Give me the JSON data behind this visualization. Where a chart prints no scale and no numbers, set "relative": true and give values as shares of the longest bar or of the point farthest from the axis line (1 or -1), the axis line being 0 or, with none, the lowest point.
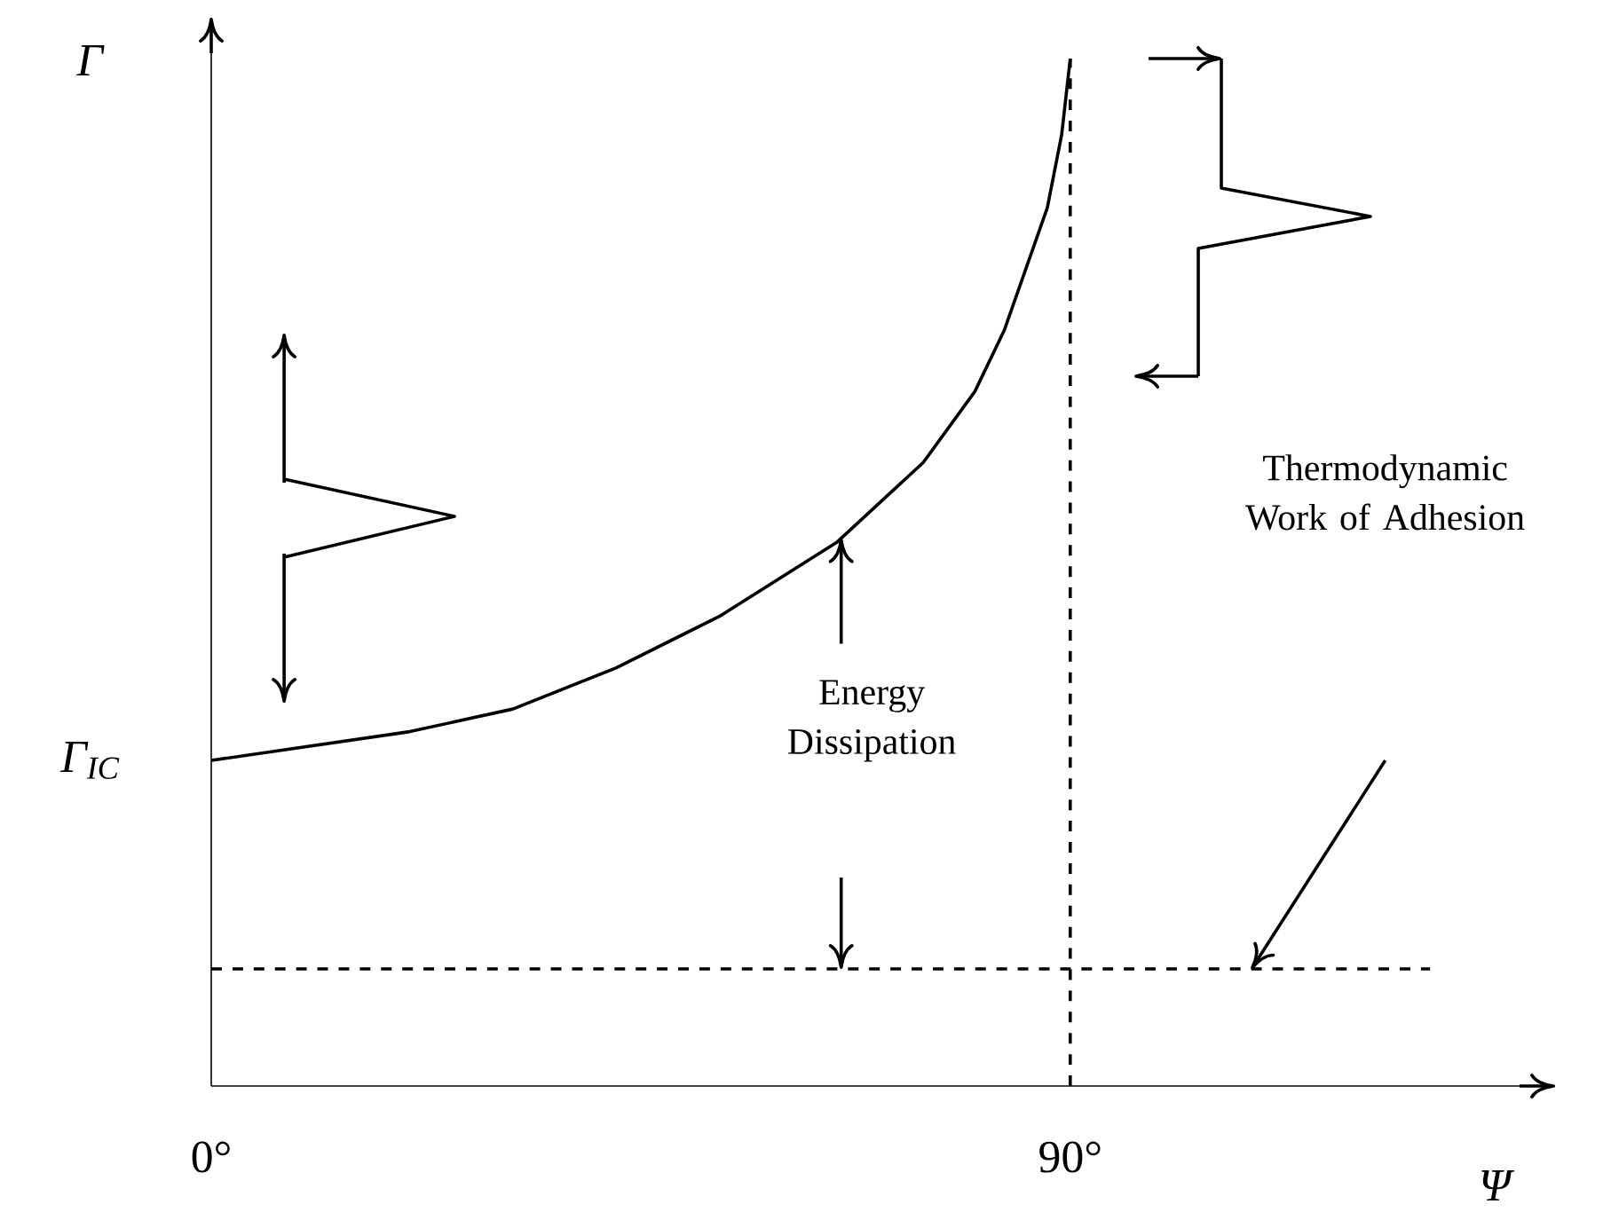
{
  "chart_data": {
    "type": "line",
    "xlabel": "Ψ",
    "ylabel": "Γ",
    "relative": true,
    "xlim": [
      0,
      140.8
    ],
    "xticks": [
      {
        "value": 0,
        "label": "0°"
      },
      {
        "value": 90,
        "label": "90°"
      }
    ],
    "tick_labels": "x",
    "marker": "none",
    "series": [
      {
        "x": [
          0,
          20.8,
          31.6,
          42.4,
          53.2,
          65.5,
          74.6,
          80.0,
          83.1,
          87.6,
          89.1,
          90
        ],
        "values": [
          0.317,
          0.345,
          0.367,
          0.407,
          0.457,
          0.529,
          0.607,
          0.676,
          0.736,
          0.855,
          0.926,
          1.0
        ],
        "color": "#000000",
        "line_style": "solid"
      },
      {
        "x": [
          0,
          127.7
        ],
        "values": [
          0.114,
          0.114
        ],
        "color": "#000000",
        "line_style": "dashed"
      }
    ],
    "ref_lines": [
      {
        "axis": "x",
        "value": 90,
        "color": "#000000",
        "line_style": "dashed"
      }
    ],
    "annotations": [
      {
        "text": "Γ$_{IC}$",
        "x": 0,
        "y": 0.317
      },
      "Energy Dissipation",
      "Thermodynamic Work of Adhesion"
    ]
  }
}
